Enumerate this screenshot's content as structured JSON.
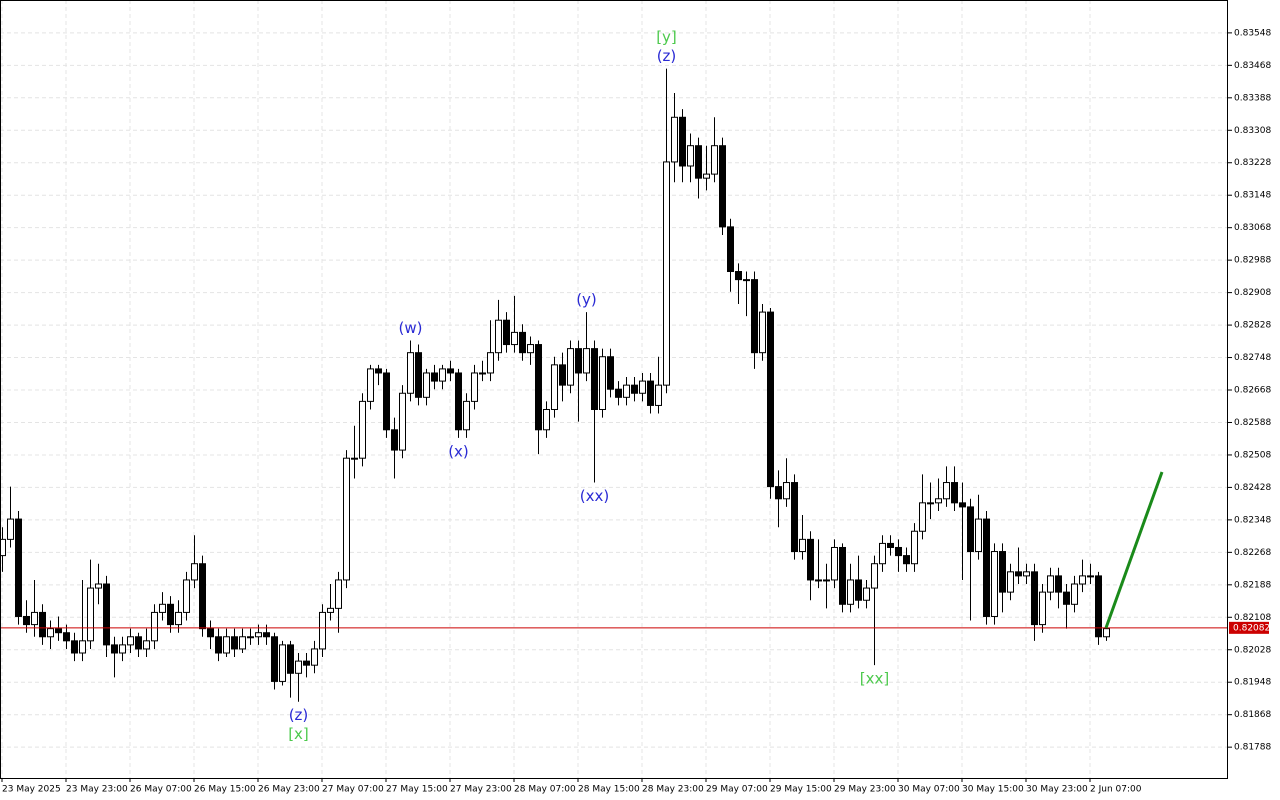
{
  "chart_data": {
    "type": "candlestick",
    "categories": [
      "23 May 2025",
      null,
      null,
      null,
      null,
      null,
      null,
      null,
      "23 May 23:00",
      null,
      null,
      null,
      null,
      null,
      null,
      null,
      "26 May 07:00",
      null,
      null,
      null,
      null,
      null,
      null,
      null,
      "26 May 15:00",
      null,
      null,
      null,
      null,
      null,
      null,
      null,
      "26 May 23:00",
      null,
      null,
      null,
      null,
      null,
      null,
      null,
      "27 May 07:00",
      null,
      null,
      null,
      null,
      null,
      null,
      null,
      "27 May 15:00",
      null,
      null,
      null,
      null,
      null,
      null,
      null,
      "27 May 23:00",
      null,
      null,
      null,
      null,
      null,
      null,
      null,
      "28 May 07:00",
      null,
      null,
      null,
      null,
      null,
      null,
      null,
      "28 May 15:00",
      null,
      null,
      null,
      null,
      null,
      null,
      null,
      "28 May 23:00",
      null,
      null,
      null,
      null,
      null,
      null,
      null,
      "29 May 07:00",
      null,
      null,
      null,
      null,
      null,
      null,
      null,
      "29 May 15:00",
      null,
      null,
      null,
      null,
      null,
      null,
      null,
      "29 May 23:00",
      null,
      null,
      null,
      null,
      null,
      null,
      null,
      "30 May 07:00",
      null,
      null,
      null,
      null,
      null,
      null,
      null,
      "30 May 15:00",
      null,
      null,
      null,
      null,
      null,
      null,
      null,
      "30 May 23:00",
      null,
      null,
      null,
      null,
      null,
      null,
      null,
      "2 Jun 07:00",
      null,
      null
    ],
    "ohlc": [
      [
        0.8226,
        0.8233,
        0.8222,
        0.823
      ],
      [
        0.823,
        0.8243,
        0.8228,
        0.8235
      ],
      [
        0.8235,
        0.8237,
        0.8209,
        0.8211
      ],
      [
        0.8211,
        0.8215,
        0.8207,
        0.8209
      ],
      [
        0.8209,
        0.822,
        0.8206,
        0.8212
      ],
      [
        0.8212,
        0.8214,
        0.8204,
        0.8206
      ],
      [
        0.8206,
        0.821,
        0.8203,
        0.8208
      ],
      [
        0.8208,
        0.8211,
        0.8205,
        0.8207
      ],
      [
        0.8207,
        0.8209,
        0.8203,
        0.8205
      ],
      [
        0.8205,
        0.8207,
        0.82,
        0.8202
      ],
      [
        0.8202,
        0.822,
        0.82,
        0.8205
      ],
      [
        0.8205,
        0.8225,
        0.8203,
        0.8218
      ],
      [
        0.8218,
        0.8224,
        0.8214,
        0.8219
      ],
      [
        0.8219,
        0.8221,
        0.8201,
        0.8204
      ],
      [
        0.8204,
        0.8206,
        0.8196,
        0.8202
      ],
      [
        0.8202,
        0.8206,
        0.82,
        0.8204
      ],
      [
        0.8204,
        0.8208,
        0.8202,
        0.8206
      ],
      [
        0.8206,
        0.8207,
        0.8201,
        0.8203
      ],
      [
        0.8203,
        0.8208,
        0.8201,
        0.8205
      ],
      [
        0.8205,
        0.8214,
        0.8203,
        0.8212
      ],
      [
        0.8212,
        0.8217,
        0.821,
        0.8214
      ],
      [
        0.8214,
        0.8216,
        0.8207,
        0.8209
      ],
      [
        0.8209,
        0.8215,
        0.8207,
        0.8212
      ],
      [
        0.8212,
        0.8222,
        0.821,
        0.822
      ],
      [
        0.822,
        0.8231,
        0.8218,
        0.8224
      ],
      [
        0.8224,
        0.8226,
        0.8206,
        0.8208
      ],
      [
        0.8208,
        0.821,
        0.8203,
        0.8206
      ],
      [
        0.8206,
        0.8208,
        0.82,
        0.8202
      ],
      [
        0.8202,
        0.8208,
        0.8201,
        0.8206
      ],
      [
        0.8206,
        0.8208,
        0.8201,
        0.8203
      ],
      [
        0.8203,
        0.8208,
        0.8202,
        0.8206
      ],
      [
        0.8206,
        0.8208,
        0.8204,
        0.8206
      ],
      [
        0.8206,
        0.8209,
        0.8204,
        0.8207
      ],
      [
        0.8207,
        0.8209,
        0.8204,
        0.8206
      ],
      [
        0.8206,
        0.8207,
        0.8193,
        0.8195
      ],
      [
        0.8195,
        0.8205,
        0.8194,
        0.8204
      ],
      [
        0.8204,
        0.8205,
        0.8191,
        0.8197
      ],
      [
        0.8197,
        0.8202,
        0.819,
        0.82
      ],
      [
        0.82,
        0.8202,
        0.8196,
        0.8199
      ],
      [
        0.8199,
        0.8205,
        0.8197,
        0.8203
      ],
      [
        0.8203,
        0.8214,
        0.8201,
        0.8212
      ],
      [
        0.8212,
        0.8219,
        0.821,
        0.8213
      ],
      [
        0.8213,
        0.8222,
        0.8207,
        0.822
      ],
      [
        0.822,
        0.8252,
        0.8218,
        0.825
      ],
      [
        0.825,
        0.8258,
        0.8245,
        0.825
      ],
      [
        0.825,
        0.8266,
        0.8248,
        0.8264
      ],
      [
        0.8264,
        0.8273,
        0.8262,
        0.8272
      ],
      [
        0.8272,
        0.8273,
        0.8268,
        0.8271
      ],
      [
        0.8271,
        0.8272,
        0.8255,
        0.8257
      ],
      [
        0.8257,
        0.826,
        0.8245,
        0.8252
      ],
      [
        0.8252,
        0.8268,
        0.825,
        0.8266
      ],
      [
        0.8266,
        0.8279,
        0.8264,
        0.8276
      ],
      [
        0.8276,
        0.8278,
        0.8263,
        0.8265
      ],
      [
        0.8265,
        0.8272,
        0.8263,
        0.8271
      ],
      [
        0.8271,
        0.8273,
        0.8267,
        0.8269
      ],
      [
        0.8269,
        0.8273,
        0.8267,
        0.8272
      ],
      [
        0.8272,
        0.8274,
        0.8269,
        0.8271
      ],
      [
        0.8271,
        0.8272,
        0.8255,
        0.8257
      ],
      [
        0.8257,
        0.8266,
        0.8255,
        0.8264
      ],
      [
        0.8264,
        0.8273,
        0.8262,
        0.8271
      ],
      [
        0.8271,
        0.8274,
        0.8269,
        0.8271
      ],
      [
        0.8271,
        0.8284,
        0.8269,
        0.8276
      ],
      [
        0.8276,
        0.8289,
        0.8274,
        0.8284
      ],
      [
        0.8284,
        0.8286,
        0.8276,
        0.8278
      ],
      [
        0.8278,
        0.829,
        0.8276,
        0.8281
      ],
      [
        0.8281,
        0.8283,
        0.8274,
        0.8276
      ],
      [
        0.8276,
        0.828,
        0.8273,
        0.8278
      ],
      [
        0.8278,
        0.8279,
        0.8251,
        0.8257
      ],
      [
        0.8257,
        0.8264,
        0.8255,
        0.8262
      ],
      [
        0.8262,
        0.8275,
        0.826,
        0.8273
      ],
      [
        0.8273,
        0.8276,
        0.8264,
        0.8268
      ],
      [
        0.8268,
        0.8279,
        0.8266,
        0.8277
      ],
      [
        0.8277,
        0.8279,
        0.8259,
        0.8271
      ],
      [
        0.8271,
        0.8286,
        0.8269,
        0.8277
      ],
      [
        0.8277,
        0.8279,
        0.8244,
        0.8262
      ],
      [
        0.8262,
        0.8277,
        0.826,
        0.8275
      ],
      [
        0.8275,
        0.8277,
        0.8265,
        0.8267
      ],
      [
        0.8267,
        0.8269,
        0.8263,
        0.8265
      ],
      [
        0.8265,
        0.827,
        0.8263,
        0.8268
      ],
      [
        0.8268,
        0.827,
        0.8264,
        0.8266
      ],
      [
        0.8266,
        0.8271,
        0.8264,
        0.8269
      ],
      [
        0.8269,
        0.8271,
        0.8261,
        0.8263
      ],
      [
        0.8263,
        0.8275,
        0.8261,
        0.8268
      ],
      [
        0.8268,
        0.8346,
        0.8266,
        0.8323
      ],
      [
        0.8323,
        0.834,
        0.8318,
        0.8334
      ],
      [
        0.8334,
        0.8336,
        0.8318,
        0.8322
      ],
      [
        0.8322,
        0.833,
        0.8318,
        0.8327
      ],
      [
        0.8327,
        0.8329,
        0.8314,
        0.8319
      ],
      [
        0.8319,
        0.8327,
        0.8316,
        0.832
      ],
      [
        0.832,
        0.8334,
        0.8318,
        0.8327
      ],
      [
        0.8327,
        0.8329,
        0.8305,
        0.8307
      ],
      [
        0.8307,
        0.8309,
        0.8291,
        0.8296
      ],
      [
        0.8296,
        0.8298,
        0.8288,
        0.8294
      ],
      [
        0.8294,
        0.8296,
        0.8285,
        0.8294
      ],
      [
        0.8294,
        0.8296,
        0.8272,
        0.8276
      ],
      [
        0.8276,
        0.8288,
        0.8274,
        0.8286
      ],
      [
        0.8286,
        0.8287,
        0.824,
        0.8243
      ],
      [
        0.8243,
        0.8247,
        0.8233,
        0.824
      ],
      [
        0.824,
        0.825,
        0.8238,
        0.8244
      ],
      [
        0.8244,
        0.8246,
        0.8225,
        0.8227
      ],
      [
        0.8227,
        0.8236,
        0.8225,
        0.823
      ],
      [
        0.823,
        0.8232,
        0.8215,
        0.822
      ],
      [
        0.822,
        0.823,
        0.8218,
        0.822
      ],
      [
        0.822,
        0.8224,
        0.8213,
        0.822
      ],
      [
        0.822,
        0.823,
        0.8218,
        0.8228
      ],
      [
        0.8228,
        0.8229,
        0.8212,
        0.8214
      ],
      [
        0.8214,
        0.8224,
        0.8212,
        0.822
      ],
      [
        0.822,
        0.8226,
        0.8213,
        0.8215
      ],
      [
        0.8215,
        0.822,
        0.8213,
        0.8218
      ],
      [
        0.8218,
        0.8226,
        0.8199,
        0.8224
      ],
      [
        0.8224,
        0.8231,
        0.8222,
        0.8229
      ],
      [
        0.8229,
        0.8231,
        0.8226,
        0.8228
      ],
      [
        0.8228,
        0.823,
        0.8222,
        0.8226
      ],
      [
        0.8226,
        0.8228,
        0.8222,
        0.8224
      ],
      [
        0.8224,
        0.8234,
        0.8222,
        0.8232
      ],
      [
        0.8232,
        0.8246,
        0.823,
        0.8239
      ],
      [
        0.8239,
        0.8244,
        0.8235,
        0.8239
      ],
      [
        0.8239,
        0.8245,
        0.8237,
        0.824
      ],
      [
        0.824,
        0.8248,
        0.8238,
        0.8244
      ],
      [
        0.8244,
        0.8248,
        0.8237,
        0.8239
      ],
      [
        0.8239,
        0.8244,
        0.822,
        0.8238
      ],
      [
        0.8238,
        0.824,
        0.821,
        0.8227
      ],
      [
        0.8227,
        0.8241,
        0.8225,
        0.8235
      ],
      [
        0.8235,
        0.8237,
        0.8209,
        0.8211
      ],
      [
        0.8211,
        0.8229,
        0.8209,
        0.8227
      ],
      [
        0.8227,
        0.8229,
        0.8212,
        0.8217
      ],
      [
        0.8217,
        0.8224,
        0.8215,
        0.8222
      ],
      [
        0.8222,
        0.8228,
        0.8219,
        0.8221
      ],
      [
        0.8221,
        0.8224,
        0.8219,
        0.8222
      ],
      [
        0.8222,
        0.8224,
        0.8205,
        0.8209
      ],
      [
        0.8209,
        0.8219,
        0.8207,
        0.8217
      ],
      [
        0.8217,
        0.8223,
        0.8215,
        0.8221
      ],
      [
        0.8221,
        0.8223,
        0.8213,
        0.8217
      ],
      [
        0.8217,
        0.8219,
        0.8208,
        0.8214
      ],
      [
        0.8214,
        0.8221,
        0.8212,
        0.8219
      ],
      [
        0.8219,
        0.8225,
        0.8217,
        0.8221
      ],
      [
        0.8221,
        0.8224,
        0.8219,
        0.8221
      ],
      [
        0.8221,
        0.8222,
        0.8204,
        0.8206
      ],
      [
        0.8206,
        0.8209,
        0.8205,
        0.8208
      ]
    ],
    "ylim": [
      0.81712,
      0.83629
    ],
    "yticks": [
      0.81788,
      0.81868,
      0.81948,
      0.82028,
      0.82108,
      0.82188,
      0.82268,
      0.82348,
      0.82428,
      0.82508,
      0.82588,
      0.82668,
      0.82748,
      0.82828,
      0.82908,
      0.82988,
      0.83068,
      0.83148,
      0.83228,
      0.83308,
      0.83388,
      0.83468,
      0.83548
    ],
    "grid": true,
    "bull_color": "#ffffff",
    "bear_color": "#000000",
    "current_price": 0.82082,
    "current_price_color": "#cc0000",
    "projection": {
      "x": [
        138,
        145
      ],
      "y": [
        0.82082,
        0.82466
      ],
      "color": "#1a8a1a"
    },
    "wave_labels": [
      {
        "text": "(w)",
        "candle": 51,
        "side": "above",
        "color": "#2a2ad4"
      },
      {
        "text": "(x)",
        "candle": 57,
        "side": "below",
        "color": "#2a2ad4"
      },
      {
        "text": "(y)",
        "candle": 73,
        "side": "above",
        "color": "#2a2ad4"
      },
      {
        "text": "(xx)",
        "candle": 74,
        "side": "below",
        "color": "#2a2ad4"
      },
      {
        "text": "(z)",
        "candle": 83,
        "side": "above",
        "color": "#2a2ad4"
      },
      {
        "text": "[y]",
        "candle": 83,
        "side": "above",
        "color": "#4cc94c"
      },
      {
        "text": "(z)",
        "candle": 37,
        "side": "below",
        "color": "#2a2ad4"
      },
      {
        "text": "[x]",
        "candle": 37,
        "side": "below",
        "color": "#4cc94c"
      },
      {
        "text": "[xx]",
        "candle": 109,
        "side": "below",
        "color": "#4cc94c"
      }
    ]
  }
}
